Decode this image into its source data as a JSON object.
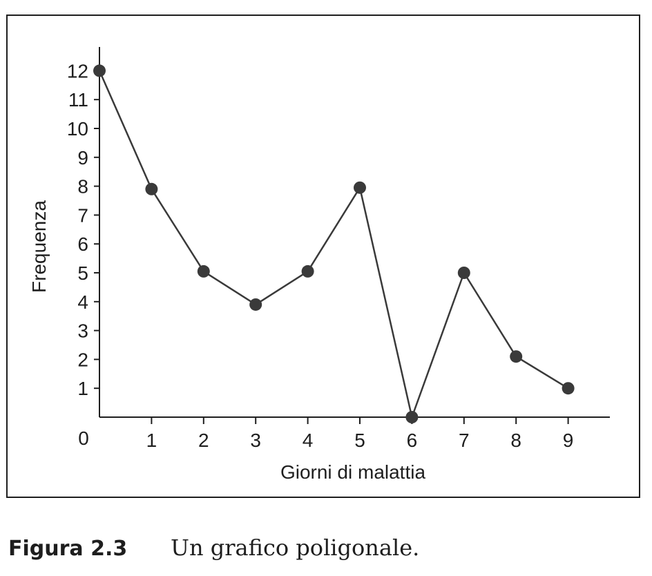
{
  "chart_data": {
    "type": "line",
    "xlabel": "Giorni di malattia",
    "ylabel": "Frequenza",
    "x": [
      0,
      1,
      2,
      3,
      4,
      5,
      6,
      7,
      8,
      9
    ],
    "y": [
      12,
      7.9,
      5.05,
      3.9,
      5.05,
      7.95,
      0,
      5.0,
      2.1,
      1.0
    ],
    "xticks": [
      "1",
      "2",
      "3",
      "4",
      "5",
      "6",
      "7",
      "8",
      "9"
    ],
    "yticks": [
      "1",
      "2",
      "3",
      "4",
      "5",
      "6",
      "7",
      "8",
      "9",
      "10",
      "11",
      "12"
    ],
    "origin_label": "0",
    "xlim": [
      0,
      9.8
    ],
    "ylim": [
      0,
      12
    ],
    "grid": false,
    "line_color": "#3a3a3a",
    "marker_color": "#3a3a3a"
  },
  "caption": {
    "label": "Figura 2.3",
    "text": "Un grafico poligonale."
  }
}
